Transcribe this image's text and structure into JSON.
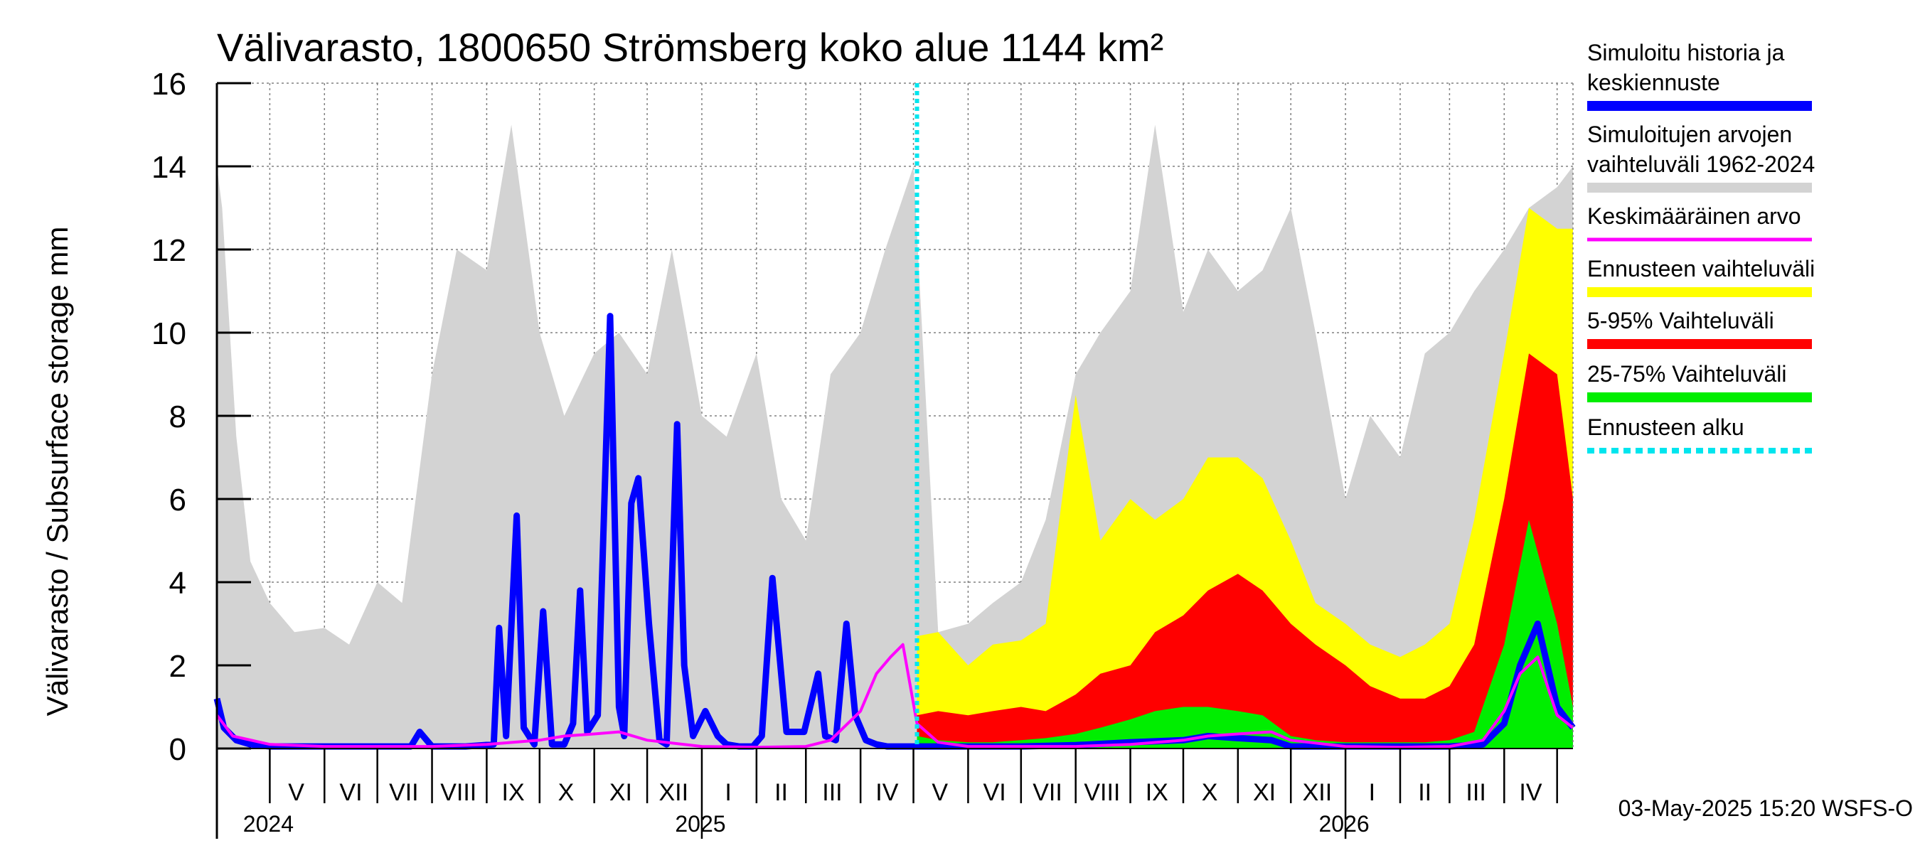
{
  "chart_data": {
    "type": "area",
    "title": "Välivarasto, 1800650 Strömsberg koko alue 1144 km²",
    "ylabel": "Välivarasto / Subsurface storage  mm",
    "ylim": [
      0,
      16
    ],
    "yticks": [
      0,
      2,
      4,
      6,
      8,
      10,
      12,
      14,
      16
    ],
    "x_range": [
      "2024-04-01",
      "2026-05-10"
    ],
    "forecast_start": "2025-05-03",
    "grid": true,
    "legend_position": "right",
    "month_labels": [
      {
        "label": "V",
        "date": "2024-05-16"
      },
      {
        "label": "VI",
        "date": "2024-06-16"
      },
      {
        "label": "VII",
        "date": "2024-07-16"
      },
      {
        "label": "VIII",
        "date": "2024-08-16"
      },
      {
        "label": "IX",
        "date": "2024-09-16"
      },
      {
        "label": "X",
        "date": "2024-10-16"
      },
      {
        "label": "XI",
        "date": "2024-11-16"
      },
      {
        "label": "XII",
        "date": "2024-12-16"
      },
      {
        "label": "I",
        "date": "2025-01-16"
      },
      {
        "label": "II",
        "date": "2025-02-15"
      },
      {
        "label": "III",
        "date": "2025-03-16"
      },
      {
        "label": "IV",
        "date": "2025-04-16"
      },
      {
        "label": "V",
        "date": "2025-05-16"
      },
      {
        "label": "VI",
        "date": "2025-06-16"
      },
      {
        "label": "VII",
        "date": "2025-07-16"
      },
      {
        "label": "VIII",
        "date": "2025-08-16"
      },
      {
        "label": "IX",
        "date": "2025-09-16"
      },
      {
        "label": "X",
        "date": "2025-10-16"
      },
      {
        "label": "XI",
        "date": "2025-11-16"
      },
      {
        "label": "XII",
        "date": "2025-12-16"
      },
      {
        "label": "I",
        "date": "2026-01-16"
      },
      {
        "label": "II",
        "date": "2026-02-15"
      },
      {
        "label": "III",
        "date": "2026-03-16"
      },
      {
        "label": "IV",
        "date": "2026-04-16"
      }
    ],
    "year_labels": [
      {
        "label": "2024",
        "date": "2024-05-01"
      },
      {
        "label": "2025",
        "date": "2025-01-01"
      },
      {
        "label": "2026",
        "date": "2026-01-01"
      }
    ],
    "series": [
      {
        "name": "Simuloitujen arvojen vaihteluväli 1962-2024",
        "kind": "band",
        "color": "#d3d3d3",
        "x": [
          "2024-04-01",
          "2024-04-04",
          "2024-04-12",
          "2024-04-20",
          "2024-05-01",
          "2024-05-15",
          "2024-06-01",
          "2024-06-15",
          "2024-07-01",
          "2024-07-15",
          "2024-08-01",
          "2024-08-15",
          "2024-09-01",
          "2024-09-15",
          "2024-10-01",
          "2024-10-15",
          "2024-11-01",
          "2024-11-15",
          "2024-12-01",
          "2024-12-15",
          "2025-01-01",
          "2025-01-15",
          "2025-02-01",
          "2025-02-15",
          "2025-03-01",
          "2025-03-15",
          "2025-04-01",
          "2025-04-15",
          "2025-05-01",
          "2025-05-15",
          "2025-06-01",
          "2025-06-15",
          "2025-07-01",
          "2025-07-15",
          "2025-08-01",
          "2025-08-15",
          "2025-09-01",
          "2025-09-15",
          "2025-10-01",
          "2025-10-15",
          "2025-11-01",
          "2025-11-15",
          "2025-12-01",
          "2025-12-15",
          "2026-01-01",
          "2026-01-15",
          "2026-02-01",
          "2026-02-15",
          "2026-03-01",
          "2026-03-15",
          "2026-04-01",
          "2026-04-15",
          "2026-05-01",
          "2026-05-10"
        ],
        "low": [
          0,
          0,
          0,
          0,
          0,
          0,
          0,
          0,
          0,
          0,
          0,
          0,
          0,
          0,
          0,
          0,
          0,
          0,
          0,
          0,
          0,
          0,
          0,
          0,
          0,
          0,
          0,
          0,
          0,
          0,
          0,
          0,
          0,
          0,
          0,
          0,
          0,
          0,
          0,
          0,
          0,
          0,
          0,
          0,
          0,
          0,
          0,
          0,
          0,
          0,
          0,
          0,
          0,
          0
        ],
        "high": [
          14.0,
          13.0,
          7.5,
          4.5,
          3.5,
          2.8,
          2.9,
          2.5,
          4.0,
          3.5,
          9.0,
          12.0,
          11.5,
          15.0,
          10.0,
          8.0,
          9.5,
          10.0,
          9.0,
          12.0,
          8.0,
          7.5,
          9.5,
          6.0,
          5.0,
          9.0,
          10.0,
          12.0,
          14.0,
          2.8,
          3.0,
          3.5,
          4.0,
          5.5,
          9.0,
          10.0,
          11.0,
          15.0,
          10.5,
          12.0,
          11.0,
          11.5,
          13.0,
          10.0,
          6.0,
          8.0,
          7.0,
          9.5,
          10.0,
          11.0,
          12.0,
          13.0,
          13.5,
          14.0
        ]
      },
      {
        "name": "Ennusteen vaihteluväli",
        "kind": "band",
        "color": "#ffff00",
        "x": [
          "2025-05-03",
          "2025-05-15",
          "2025-06-01",
          "2025-06-15",
          "2025-07-01",
          "2025-07-15",
          "2025-08-01",
          "2025-08-15",
          "2025-09-01",
          "2025-09-15",
          "2025-10-01",
          "2025-10-15",
          "2025-11-01",
          "2025-11-15",
          "2025-12-01",
          "2025-12-15",
          "2026-01-01",
          "2026-01-15",
          "2026-02-01",
          "2026-02-15",
          "2026-03-01",
          "2026-03-15",
          "2026-04-01",
          "2026-04-15",
          "2026-05-01",
          "2026-05-10"
        ],
        "low": [
          0,
          0,
          0,
          0,
          0,
          0,
          0,
          0,
          0,
          0,
          0,
          0,
          0,
          0,
          0,
          0,
          0,
          0,
          0,
          0,
          0,
          0,
          0,
          0,
          0,
          0
        ],
        "high": [
          2.7,
          2.8,
          2.0,
          2.5,
          2.6,
          3.0,
          8.5,
          5.0,
          6.0,
          5.5,
          6.0,
          7.0,
          7.0,
          6.5,
          5.0,
          3.5,
          3.0,
          2.5,
          2.2,
          2.5,
          3.0,
          5.5,
          9.5,
          13.0,
          12.5,
          12.5
        ]
      },
      {
        "name": "5-95% Vaihteluväli",
        "kind": "band",
        "color": "#ff0000",
        "x": [
          "2025-05-03",
          "2025-05-15",
          "2025-06-01",
          "2025-06-15",
          "2025-07-01",
          "2025-07-15",
          "2025-08-01",
          "2025-08-15",
          "2025-09-01",
          "2025-09-15",
          "2025-10-01",
          "2025-10-15",
          "2025-11-01",
          "2025-11-15",
          "2025-12-01",
          "2025-12-15",
          "2026-01-01",
          "2026-01-15",
          "2026-02-01",
          "2026-02-15",
          "2026-03-01",
          "2026-03-15",
          "2026-04-01",
          "2026-04-15",
          "2026-05-01",
          "2026-05-10"
        ],
        "low": [
          0,
          0,
          0,
          0,
          0,
          0,
          0,
          0,
          0,
          0,
          0,
          0,
          0,
          0,
          0,
          0,
          0,
          0,
          0,
          0,
          0,
          0,
          0,
          0,
          0,
          0
        ],
        "high": [
          0.8,
          0.9,
          0.8,
          0.9,
          1.0,
          0.9,
          1.3,
          1.8,
          2.0,
          2.8,
          3.2,
          3.8,
          4.2,
          3.8,
          3.0,
          2.5,
          2.0,
          1.5,
          1.2,
          1.2,
          1.5,
          2.5,
          6.0,
          9.5,
          9.0,
          6.0
        ]
      },
      {
        "name": "25-75% Vaihteluväli",
        "kind": "band",
        "color": "#00ee00",
        "x": [
          "2025-05-03",
          "2025-05-15",
          "2025-06-01",
          "2025-06-15",
          "2025-07-01",
          "2025-07-15",
          "2025-08-01",
          "2025-08-15",
          "2025-09-01",
          "2025-09-15",
          "2025-10-01",
          "2025-10-15",
          "2025-11-01",
          "2025-11-15",
          "2025-12-01",
          "2025-12-15",
          "2026-01-01",
          "2026-01-15",
          "2026-02-01",
          "2026-02-15",
          "2026-03-01",
          "2026-03-15",
          "2026-04-01",
          "2026-04-15",
          "2026-05-01",
          "2026-05-10"
        ],
        "low": [
          0,
          0,
          0,
          0,
          0,
          0,
          0,
          0,
          0,
          0,
          0,
          0,
          0,
          0,
          0,
          0,
          0,
          0,
          0,
          0,
          0,
          0,
          0,
          0,
          0,
          0
        ],
        "high": [
          0.3,
          0.2,
          0.15,
          0.15,
          0.2,
          0.25,
          0.35,
          0.5,
          0.7,
          0.9,
          1.0,
          1.0,
          0.9,
          0.8,
          0.3,
          0.2,
          0.15,
          0.15,
          0.15,
          0.15,
          0.2,
          0.4,
          2.5,
          5.5,
          3.0,
          1.0
        ]
      },
      {
        "name": "Simuloitu historia ja keskiennuste",
        "kind": "line",
        "color": "#0000ff",
        "x": [
          "2024-04-01",
          "2024-04-05",
          "2024-04-12",
          "2024-04-20",
          "2024-05-01",
          "2024-06-01",
          "2024-07-01",
          "2024-07-20",
          "2024-07-25",
          "2024-08-01",
          "2024-08-20",
          "2024-09-05",
          "2024-09-08",
          "2024-09-12",
          "2024-09-18",
          "2024-09-22",
          "2024-09-28",
          "2024-10-03",
          "2024-10-08",
          "2024-10-15",
          "2024-10-20",
          "2024-10-24",
          "2024-10-28",
          "2024-11-03",
          "2024-11-10",
          "2024-11-15",
          "2024-11-18",
          "2024-11-22",
          "2024-11-26",
          "2024-12-02",
          "2024-12-08",
          "2024-12-12",
          "2024-12-18",
          "2024-12-22",
          "2024-12-27",
          "2025-01-03",
          "2025-01-10",
          "2025-01-15",
          "2025-01-22",
          "2025-01-30",
          "2025-02-04",
          "2025-02-10",
          "2025-02-18",
          "2025-02-28",
          "2025-03-08",
          "2025-03-12",
          "2025-03-18",
          "2025-03-24",
          "2025-03-29",
          "2025-04-04",
          "2025-04-10",
          "2025-04-16",
          "2025-04-22",
          "2025-04-28",
          "2025-05-03",
          "2025-06-01",
          "2025-07-01",
          "2025-08-01",
          "2025-09-01",
          "2025-10-01",
          "2025-10-15",
          "2025-11-01",
          "2025-11-20",
          "2025-12-01",
          "2026-01-01",
          "2026-02-01",
          "2026-03-01",
          "2026-03-20",
          "2026-04-01",
          "2026-04-10",
          "2026-04-20",
          "2026-05-01",
          "2026-05-10"
        ],
        "y": [
          1.2,
          0.5,
          0.2,
          0.1,
          0.05,
          0.05,
          0.05,
          0.05,
          0.4,
          0.05,
          0.05,
          0.1,
          2.9,
          0.3,
          5.6,
          0.5,
          0.1,
          3.3,
          0.1,
          0.1,
          0.6,
          3.8,
          0.4,
          0.8,
          10.4,
          1.0,
          0.3,
          5.9,
          6.5,
          3.0,
          0.2,
          0.1,
          7.8,
          2.0,
          0.3,
          0.9,
          0.3,
          0.1,
          0.05,
          0.05,
          0.3,
          4.1,
          0.4,
          0.4,
          1.8,
          0.3,
          0.2,
          3.0,
          0.8,
          0.2,
          0.1,
          0.05,
          0.05,
          0.05,
          0.05,
          0.05,
          0.05,
          0.08,
          0.15,
          0.2,
          0.3,
          0.25,
          0.2,
          0.05,
          0.05,
          0.05,
          0.05,
          0.1,
          0.6,
          2.0,
          3.0,
          1.0,
          0.5
        ]
      },
      {
        "name": "Keskimääräinen arvo",
        "kind": "line",
        "color": "#ff00ff",
        "x": [
          "2024-04-01",
          "2024-04-10",
          "2024-05-01",
          "2024-06-01",
          "2024-07-01",
          "2024-08-01",
          "2024-09-01",
          "2024-10-01",
          "2024-10-15",
          "2024-11-01",
          "2024-11-15",
          "2024-12-01",
          "2025-01-01",
          "2025-02-01",
          "2025-03-01",
          "2025-03-15",
          "2025-04-01",
          "2025-04-10",
          "2025-04-18",
          "2025-04-25",
          "2025-05-03",
          "2025-05-15",
          "2025-06-01",
          "2025-07-01",
          "2025-08-01",
          "2025-09-01",
          "2025-10-01",
          "2025-10-15",
          "2025-11-01",
          "2025-11-20",
          "2025-12-01",
          "2026-01-01",
          "2026-02-01",
          "2026-03-01",
          "2026-03-20",
          "2026-04-01",
          "2026-04-10",
          "2026-04-20",
          "2026-05-01",
          "2026-05-10"
        ],
        "y": [
          0.8,
          0.3,
          0.1,
          0.05,
          0.05,
          0.05,
          0.1,
          0.2,
          0.3,
          0.35,
          0.4,
          0.2,
          0.05,
          0.03,
          0.05,
          0.2,
          0.9,
          1.8,
          2.2,
          2.5,
          0.6,
          0.15,
          0.05,
          0.05,
          0.05,
          0.1,
          0.2,
          0.3,
          0.35,
          0.4,
          0.2,
          0.05,
          0.03,
          0.05,
          0.2,
          0.9,
          1.8,
          2.2,
          0.8,
          0.5
        ]
      },
      {
        "name": "Ennusteen alku",
        "kind": "vline",
        "color": "#00e5ee"
      }
    ],
    "legend": [
      {
        "text": "Simuloitu historia ja keskiennuste",
        "lines": [
          "Simuloitu historia ja",
          "keskiennuste"
        ],
        "color": "#0000ff",
        "style": "solid"
      },
      {
        "text": "Simuloitujen arvojen vaihteluväli 1962-2024",
        "lines": [
          "Simuloitujen arvojen",
          "vaihteluväli 1962-2024"
        ],
        "color": "#d3d3d3",
        "style": "solid"
      },
      {
        "text": "Keskimääräinen arvo",
        "lines": [
          "Keskimääräinen arvo"
        ],
        "color": "#ff00ff",
        "style": "thin"
      },
      {
        "text": "Ennusteen vaihteluväli",
        "lines": [
          "Ennusteen vaihteluväli"
        ],
        "color": "#ffff00",
        "style": "solid"
      },
      {
        "text": "5-95% Vaihteluväli",
        "lines": [
          "5-95% Vaihteluväli"
        ],
        "color": "#ff0000",
        "style": "solid"
      },
      {
        "text": "25-75% Vaihteluväli",
        "lines": [
          "25-75% Vaihteluväli"
        ],
        "color": "#00ee00",
        "style": "solid"
      },
      {
        "text": "Ennusteen alku",
        "lines": [
          "Ennusteen alku"
        ],
        "color": "#00e5ee",
        "style": "dotted"
      }
    ],
    "footer": "03-May-2025 15:20 WSFS-O"
  }
}
